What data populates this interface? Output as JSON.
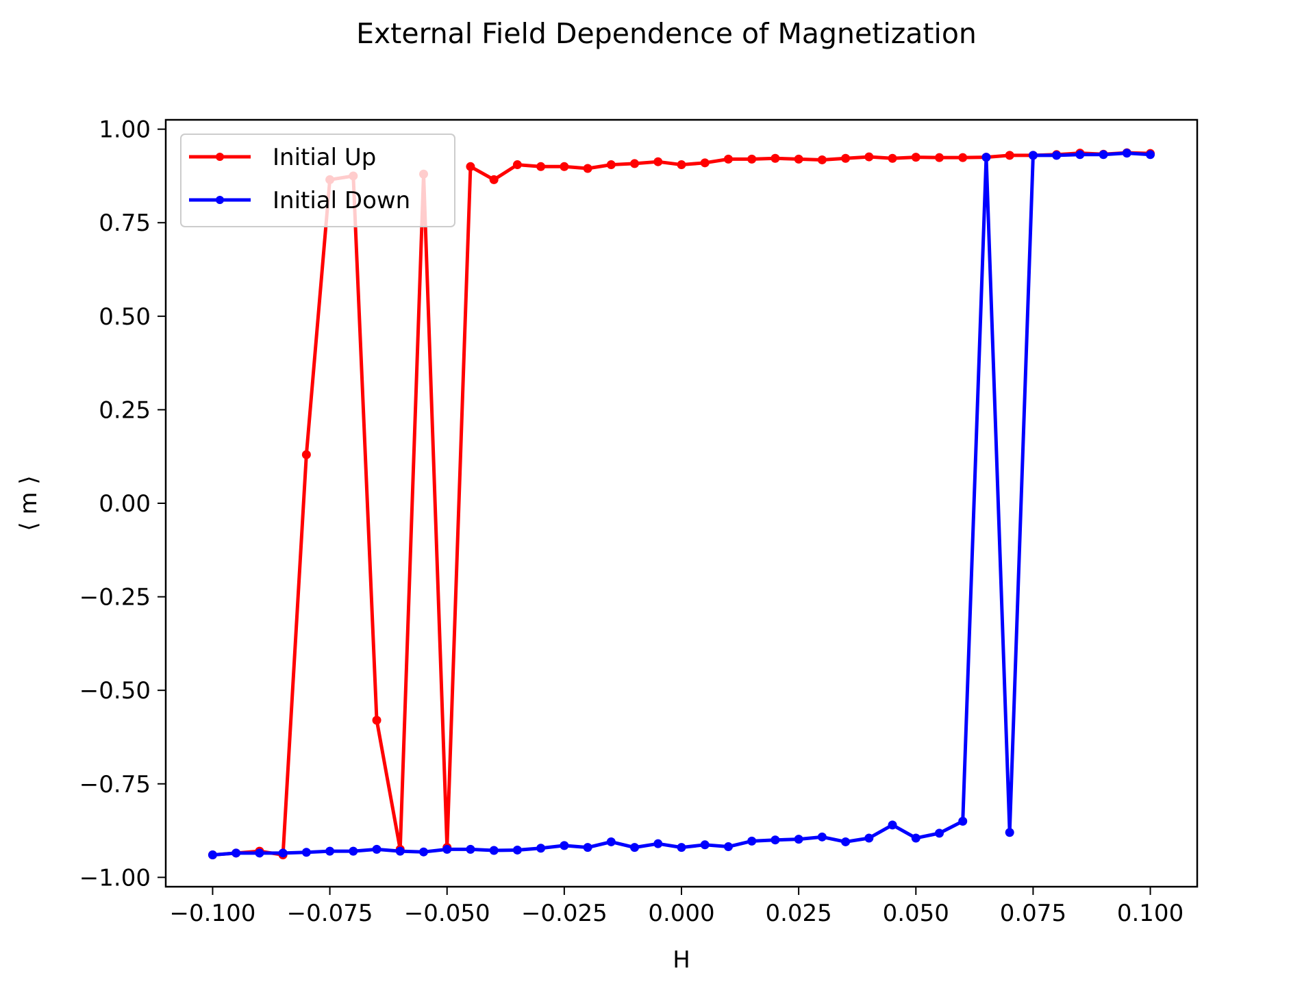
{
  "chart_data": {
    "type": "line",
    "title": "External Field Dependence of Magnetization",
    "xlabel": "H",
    "ylabel": "⟨ m ⟩",
    "xlim": [
      -0.11,
      0.11
    ],
    "ylim": [
      -1.025,
      1.025
    ],
    "xticks": [
      -0.1,
      -0.075,
      -0.05,
      -0.025,
      0.0,
      0.025,
      0.05,
      0.075,
      0.1
    ],
    "xtick_labels": [
      "−0.100",
      "−0.075",
      "−0.050",
      "−0.025",
      "0.000",
      "0.025",
      "0.050",
      "0.075",
      "0.100"
    ],
    "yticks": [
      1.0,
      0.75,
      0.5,
      0.25,
      0.0,
      -0.25,
      -0.5,
      -0.75,
      -1.0
    ],
    "ytick_labels": [
      "1.00",
      "0.75",
      "0.50",
      "0.25",
      "0.00",
      "−0.25",
      "−0.50",
      "−0.75",
      "−1.00"
    ],
    "legend_position": "top-left",
    "grid": false,
    "x": [
      -0.1,
      -0.095,
      -0.09,
      -0.085,
      -0.08,
      -0.075,
      -0.07,
      -0.065,
      -0.06,
      -0.055,
      -0.05,
      -0.045,
      -0.04,
      -0.035,
      -0.03,
      -0.025,
      -0.02,
      -0.015,
      -0.01,
      -0.005,
      0.0,
      0.005,
      0.01,
      0.015,
      0.02,
      0.025,
      0.03,
      0.035,
      0.04,
      0.045,
      0.05,
      0.055,
      0.06,
      0.065,
      0.07,
      0.075,
      0.08,
      0.085,
      0.09,
      0.095,
      0.1
    ],
    "series": [
      {
        "name": "Initial Up",
        "color": "#ff0000",
        "values": [
          -0.94,
          -0.935,
          -0.93,
          -0.94,
          0.13,
          0.865,
          0.875,
          -0.58,
          -0.925,
          0.88,
          -0.92,
          0.9,
          0.865,
          0.905,
          0.9,
          0.9,
          0.895,
          0.905,
          0.908,
          0.913,
          0.905,
          0.91,
          0.92,
          0.92,
          0.922,
          0.92,
          0.918,
          0.922,
          0.926,
          0.922,
          0.925,
          0.924,
          0.924,
          0.925,
          0.93,
          0.93,
          0.932,
          0.936,
          0.933,
          0.937,
          0.935
        ]
      },
      {
        "name": "Initial Down",
        "color": "#0000ff",
        "values": [
          -0.94,
          -0.935,
          -0.935,
          -0.935,
          -0.933,
          -0.93,
          -0.93,
          -0.925,
          -0.93,
          -0.932,
          -0.925,
          -0.925,
          -0.928,
          -0.927,
          -0.922,
          -0.915,
          -0.92,
          -0.905,
          -0.92,
          -0.91,
          -0.92,
          -0.913,
          -0.918,
          -0.903,
          -0.9,
          -0.898,
          -0.892,
          -0.905,
          -0.895,
          -0.86,
          -0.895,
          -0.882,
          -0.85,
          0.925,
          -0.88,
          0.93,
          0.93,
          0.932,
          0.932,
          0.936,
          0.932
        ]
      }
    ]
  }
}
